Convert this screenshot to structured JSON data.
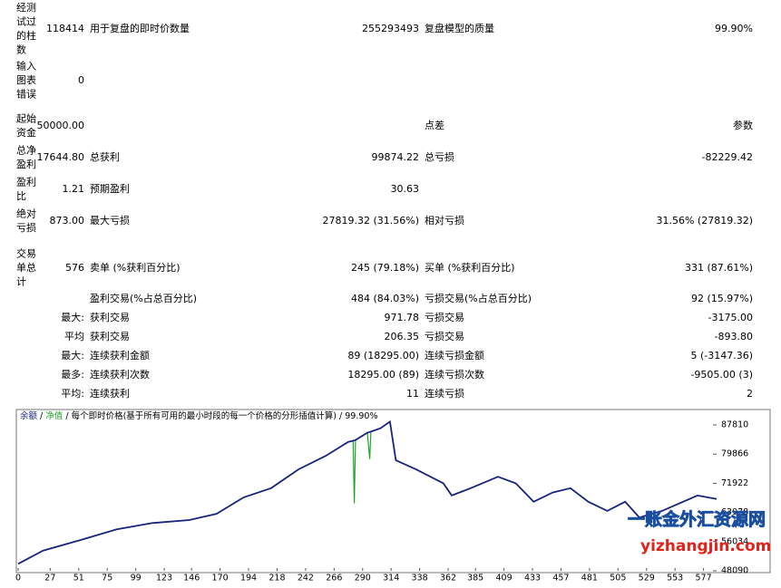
{
  "report": {
    "rows": [
      {
        "label": "经测试过的柱数",
        "value": "118414",
        "label2": "用于复盘的即时价数量",
        "value2": "255293493",
        "label3": "复盘模型的质量",
        "value3": "99.90%"
      },
      {
        "label": "输入图表错误",
        "value": "0"
      },
      {
        "label": "起始资金",
        "value": "50000.00",
        "label3": "点差",
        "value3": "参数"
      },
      {
        "label": "总净盈利",
        "value": "17644.80",
        "label2": "总获利",
        "value2": "99874.22",
        "label3": "总亏损",
        "value3": "-82229.42"
      },
      {
        "label": "盈利比",
        "value": "1.21",
        "label2": "预期盈利",
        "value2": "30.63"
      },
      {
        "label": "绝对亏损",
        "value": "873.00",
        "label2": "最大亏损",
        "value2": "27819.32 (31.56%)",
        "label3": "相对亏损",
        "value3": "31.56% (27819.32)"
      },
      {
        "label": "交易单总计",
        "value": "576",
        "label2": "卖单 (%获利百分比)",
        "value2": "245 (79.18%)",
        "label3": "买单 (%获利百分比)",
        "value3": "331 (87.61%)"
      },
      {
        "label2": "盈利交易(%占总百分比)",
        "value2": "484 (84.03%)",
        "label3": "亏损交易(%占总百分比)",
        "value3": "92 (15.97%)"
      },
      {
        "sublabel": "最大:",
        "label2": "获利交易",
        "value2": "971.78",
        "label3": "亏损交易",
        "value3": "-3175.00"
      },
      {
        "sublabel": "平均",
        "label2": "获利交易",
        "value2": "206.35",
        "label3": "亏损交易",
        "value3": "-893.80"
      },
      {
        "sublabel": "最大:",
        "label2": "连续获利金额",
        "value2": "89 (18295.00)",
        "label3": "连续亏损金额",
        "value3": "5 (-3147.36)"
      },
      {
        "sublabel": "最多:",
        "label2": "连续获利次数",
        "value2": "18295.00 (89)",
        "label3": "连续亏损次数",
        "value3": "-9505.00 (3)"
      },
      {
        "sublabel": "平均:",
        "label2": "连续获利",
        "value2": "11",
        "label3": "连续亏损",
        "value3": "2"
      }
    ]
  },
  "chart_data": {
    "type": "line",
    "separator": "/",
    "subtitle": "每个即时价格(基于所有可用的最小时段的每一个价格的分形插值计算)",
    "quality": "99.90%",
    "x": [
      0,
      21,
      52,
      83,
      113,
      144,
      167,
      190,
      213,
      236,
      259,
      278,
      282,
      283,
      284,
      294,
      296,
      297,
      305,
      313,
      318,
      335,
      358,
      365,
      381,
      404,
      419,
      434,
      450,
      465,
      480,
      496,
      511,
      523,
      542,
      572,
      588
    ],
    "series": [
      {
        "name": "余额",
        "color": "#1a237e",
        "values": [
          50000,
          53600,
          56400,
          59400,
          61100,
          61900,
          63600,
          68100,
          70600,
          75700,
          79400,
          83200,
          83500,
          83600,
          83700,
          85700,
          85900,
          86000,
          86900,
          88700,
          78200,
          75700,
          71900,
          68600,
          70600,
          73700,
          71900,
          66900,
          69400,
          70600,
          66900,
          64400,
          66900,
          62600,
          64400,
          68600,
          67640
        ]
      },
      {
        "name": "净值",
        "color": "#22a32a",
        "values": [
          50000,
          53600,
          56400,
          59400,
          61100,
          61900,
          63600,
          68100,
          70600,
          75700,
          79400,
          83200,
          83500,
          66500,
          83700,
          85700,
          78500,
          86000,
          86900,
          88700,
          78200,
          75700,
          71900,
          68600,
          70600,
          73700,
          71900,
          66900,
          69400,
          70600,
          66900,
          64400,
          66900,
          62600,
          64400,
          68600,
          67640
        ]
      }
    ],
    "xlim": [
      0,
      588
    ],
    "xticks": [
      0,
      27,
      51,
      75,
      99,
      123,
      146,
      170,
      194,
      218,
      242,
      266,
      290,
      314,
      338,
      362,
      385,
      409,
      433,
      457,
      481,
      505,
      529,
      553,
      577
    ],
    "ylim": [
      48090,
      89300
    ],
    "yticks": [
      48090,
      56034,
      63978,
      71922,
      79866,
      87810
    ]
  },
  "watermark": {
    "title": "一账金外汇资源网",
    "url": "yizhangjin.com"
  }
}
